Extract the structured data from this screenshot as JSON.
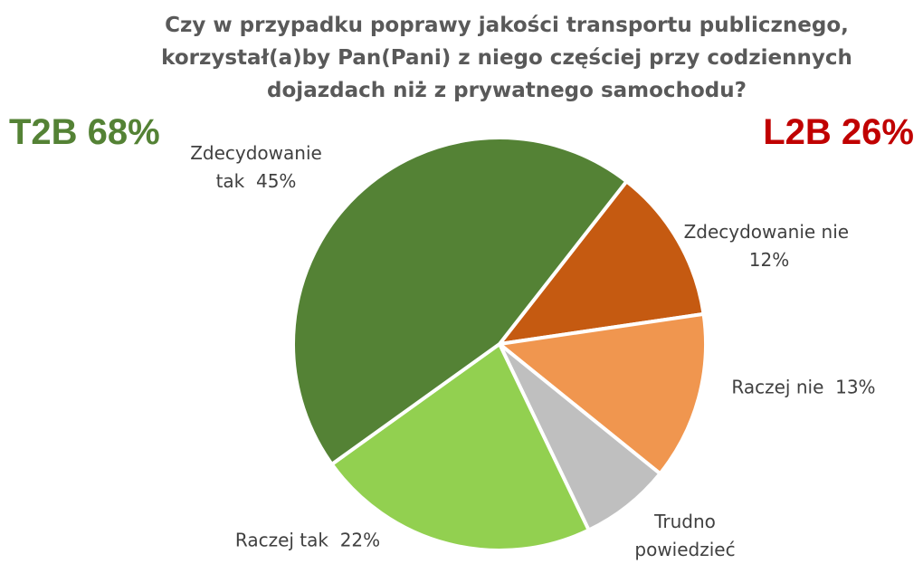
{
  "chart_data": {
    "type": "pie",
    "title": "Czy w przypadku poprawy jakości transportu publicznego,\nkorzystał(a)by Pan(Pani) z niego częściej przy codziennych\ndojazdach niż z prywatnego samochodu?",
    "categories": [
      "Zdecydowanie nie",
      "Raczej nie",
      "Trudno powiedzieć",
      "Raczej tak",
      "Zdecydowanie tak"
    ],
    "values": [
      12,
      13,
      7,
      22,
      45
    ],
    "value_labels": [
      "12%",
      "13%",
      null,
      "22%",
      "45%"
    ],
    "colors": [
      "#c55a11",
      "#f0964f",
      "#bfbfbf",
      "#92d050",
      "#548235"
    ],
    "annotations": [
      {
        "text": "T2B 68%",
        "color": "#548235"
      },
      {
        "text": "L2B 26%",
        "color": "#c00000"
      }
    ]
  }
}
